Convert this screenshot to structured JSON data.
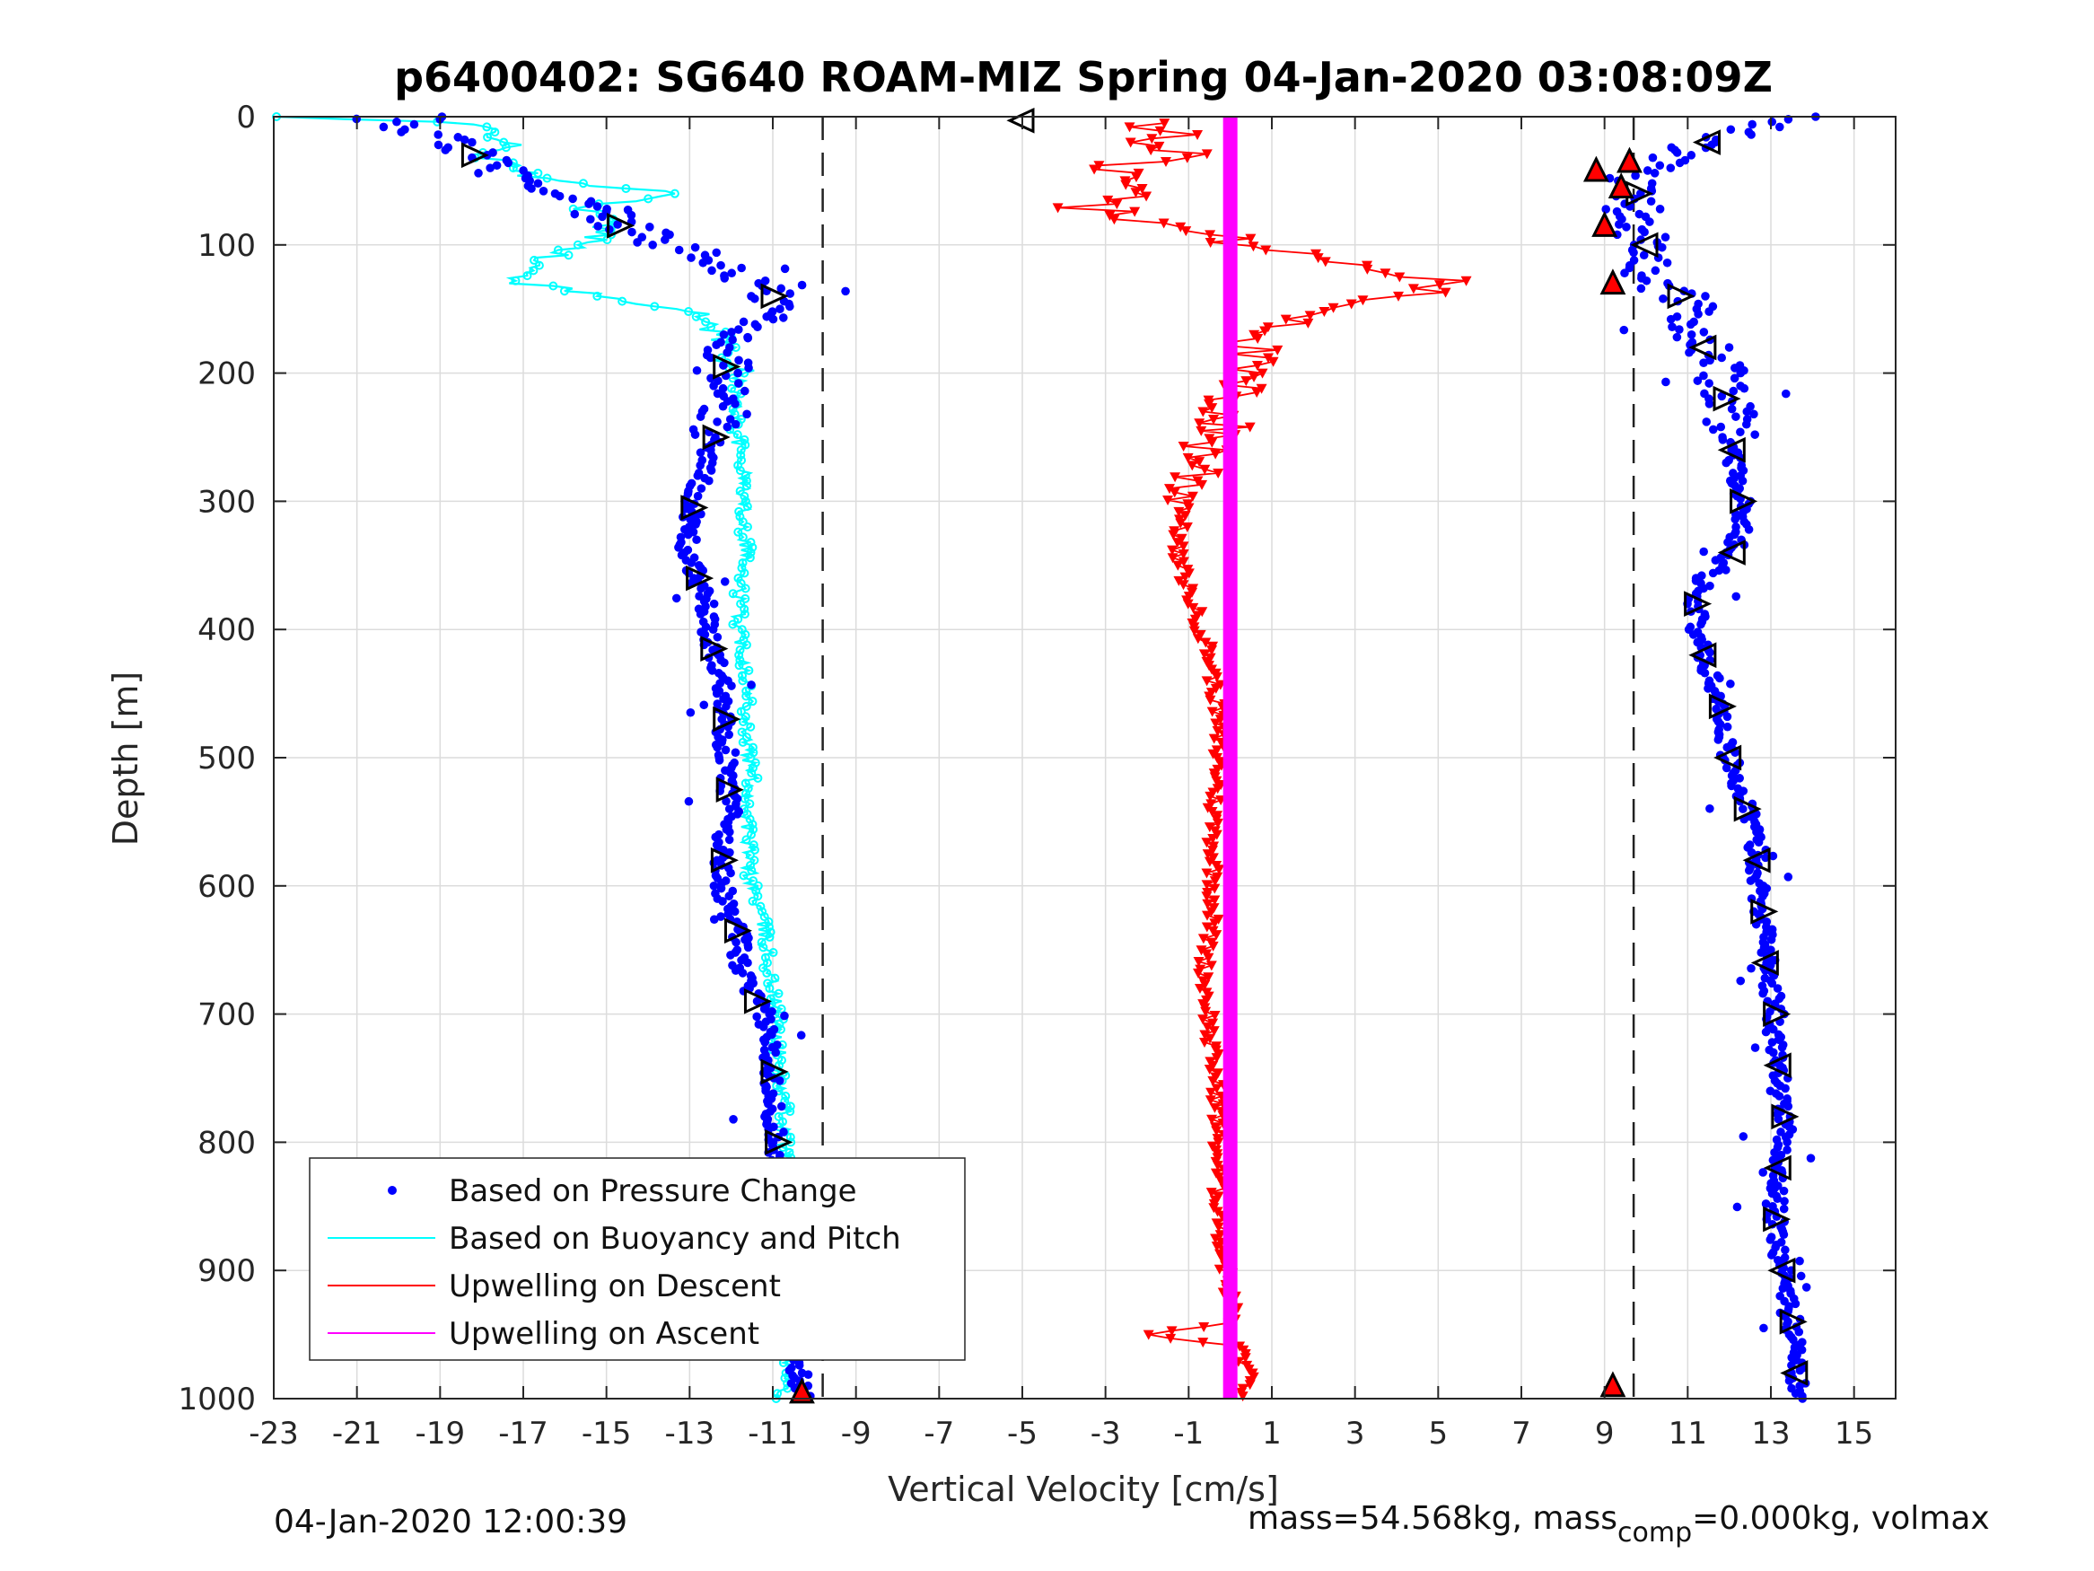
{
  "chart_data": {
    "type": "scatter",
    "title": "p6400402: SG640 ROAM-MIZ Spring 04-Jan-2020 03:08:09Z",
    "xlabel": "Vertical Velocity [cm/s]",
    "ylabel": "Depth [m]",
    "xlim": [
      -23,
      16
    ],
    "ylim": [
      1000,
      0
    ],
    "y_reversed": true,
    "grid": true,
    "x_ticks": [
      "-23",
      "-21",
      "-19",
      "-17",
      "-15",
      "-13",
      "-11",
      "-9",
      "-7",
      "-5",
      "-3",
      "-1",
      "1",
      "3",
      "5",
      "7",
      "9",
      "11",
      "13",
      "15"
    ],
    "y_ticks": [
      "0",
      "100",
      "200",
      "300",
      "400",
      "500",
      "600",
      "700",
      "800",
      "900",
      "1000"
    ],
    "reference_lines": [
      -9.8,
      9.7
    ],
    "legend": {
      "placement": "lower-left",
      "entries": [
        {
          "label": "Based on Pressure Change",
          "color": "#0000ff",
          "marker": "dot"
        },
        {
          "label": "Based on Buoyancy and Pitch",
          "color": "#00ffff",
          "marker": "line"
        },
        {
          "label": "Upwelling on Descent",
          "color": "#ff0000",
          "marker": "line"
        },
        {
          "label": "Upwelling on Ascent",
          "color": "#ff00ff",
          "marker": "line"
        }
      ]
    },
    "series": [
      {
        "name": "Based on Pressure Change",
        "color": "#0000ff",
        "descent": {
          "depth": [
            0,
            10,
            20,
            30,
            40,
            50,
            60,
            70,
            80,
            90,
            100,
            110,
            120,
            130,
            140,
            150,
            160,
            170,
            180,
            190,
            200,
            220,
            240,
            260,
            280,
            300,
            320,
            340,
            360,
            380,
            400,
            420,
            440,
            460,
            480,
            500,
            520,
            540,
            560,
            580,
            600,
            620,
            640,
            660,
            680,
            700,
            720,
            740,
            760,
            780,
            800,
            820,
            840,
            860,
            880,
            900,
            920,
            940,
            960,
            980,
            1000
          ],
          "velocity": [
            -19.5,
            -19.8,
            -18.5,
            -18.2,
            -17.6,
            -17.2,
            -16.5,
            -15.6,
            -15.2,
            -14.2,
            -13.5,
            -12.6,
            -12.0,
            -11.5,
            -11.0,
            -10.9,
            -11.5,
            -11.9,
            -12.0,
            -12.1,
            -12.2,
            -12.2,
            -12.3,
            -12.5,
            -12.7,
            -12.9,
            -13.0,
            -13.1,
            -12.8,
            -12.6,
            -12.6,
            -12.4,
            -12.2,
            -12.1,
            -12.2,
            -12.1,
            -12.1,
            -12.0,
            -12.2,
            -12.2,
            -12.2,
            -12.1,
            -11.8,
            -11.8,
            -11.6,
            -11.2,
            -11.1,
            -11.0,
            -11.0,
            -11.0,
            -10.9,
            -10.9,
            -10.8,
            -10.8,
            -10.7,
            -10.7,
            -10.6,
            -10.5,
            -10.4,
            -10.4,
            -10.3
          ]
        },
        "ascent": {
          "depth": [
            0,
            10,
            20,
            30,
            40,
            50,
            60,
            70,
            80,
            90,
            100,
            110,
            120,
            130,
            140,
            150,
            160,
            170,
            180,
            190,
            200,
            220,
            240,
            260,
            280,
            300,
            320,
            340,
            360,
            380,
            400,
            420,
            440,
            460,
            480,
            500,
            520,
            540,
            560,
            580,
            600,
            620,
            640,
            660,
            680,
            700,
            720,
            740,
            760,
            780,
            800,
            820,
            840,
            860,
            880,
            900,
            920,
            940,
            960,
            980,
            1000
          ],
          "velocity": [
            13.5,
            12.5,
            11.5,
            10.8,
            10.2,
            9.6,
            9.8,
            10.0,
            9.8,
            9.9,
            10.0,
            9.9,
            10.0,
            10.2,
            10.8,
            11.0,
            11.2,
            11.3,
            11.4,
            11.6,
            11.8,
            11.9,
            12.0,
            12.1,
            12.2,
            12.3,
            12.3,
            12.1,
            11.4,
            11.2,
            11.2,
            11.4,
            11.6,
            11.8,
            11.9,
            12.0,
            12.2,
            12.4,
            12.6,
            12.7,
            12.7,
            12.8,
            12.9,
            12.9,
            13.0,
            13.1,
            13.1,
            13.2,
            13.2,
            13.3,
            13.3,
            13.2,
            13.1,
            13.1,
            13.2,
            13.3,
            13.4,
            13.5,
            13.6,
            13.6,
            13.7
          ]
        }
      },
      {
        "name": "Based on Buoyancy and Pitch",
        "color": "#00ffff",
        "depth": [
          0,
          5,
          10,
          20,
          30,
          40,
          50,
          60,
          70,
          80,
          90,
          100,
          110,
          120,
          130,
          140,
          150,
          160,
          170,
          180,
          190,
          200,
          220,
          240,
          260,
          280,
          300,
          320,
          340,
          360,
          380,
          400,
          420,
          440,
          460,
          480,
          500,
          520,
          540,
          560,
          580,
          600,
          620,
          640,
          660,
          680,
          700,
          720,
          740,
          760,
          780,
          800,
          820,
          840,
          860,
          880,
          900,
          920,
          940,
          960,
          980,
          1000
        ],
        "velocity": [
          -23.0,
          -18.5,
          -17.8,
          -17.3,
          -18.0,
          -17.2,
          -16.5,
          -13.0,
          -15.5,
          -15.0,
          -15.2,
          -15.3,
          -16.5,
          -17.0,
          -17.0,
          -15.0,
          -13.2,
          -12.5,
          -12.3,
          -12.1,
          -12.0,
          -11.8,
          -11.9,
          -11.9,
          -11.8,
          -11.7,
          -11.7,
          -11.7,
          -11.6,
          -11.8,
          -11.8,
          -11.8,
          -11.7,
          -11.6,
          -11.6,
          -11.6,
          -11.6,
          -11.5,
          -11.6,
          -11.6,
          -11.6,
          -11.5,
          -11.3,
          -11.2,
          -11.1,
          -11.0,
          -10.9,
          -10.9,
          -10.8,
          -10.8,
          -10.7,
          -10.7,
          -10.7,
          -10.7,
          -10.7,
          -10.6,
          -10.6,
          -10.5,
          -10.5,
          -10.6,
          -10.7,
          -10.8
        ]
      },
      {
        "name": "Upwelling on Descent",
        "color": "#ff0000",
        "depth": [
          5,
          10,
          15,
          20,
          30,
          40,
          50,
          60,
          70,
          80,
          90,
          100,
          110,
          120,
          130,
          140,
          150,
          160,
          170,
          180,
          190,
          200,
          220,
          240,
          260,
          280,
          300,
          320,
          340,
          360,
          380,
          400,
          420,
          440,
          460,
          480,
          500,
          520,
          540,
          560,
          580,
          600,
          620,
          640,
          660,
          680,
          700,
          720,
          740,
          760,
          780,
          800,
          820,
          840,
          860,
          880,
          900,
          920,
          940,
          950,
          960,
          980,
          1000
        ],
        "velocity": [
          -1.5,
          -1.8,
          -0.8,
          -2.5,
          -1.0,
          -3.0,
          -2.0,
          -1.5,
          -3.5,
          -2.0,
          -1.0,
          0.5,
          2.0,
          3.5,
          5.5,
          4.0,
          2.5,
          1.8,
          1.0,
          0.5,
          0.3,
          0.2,
          0.0,
          -0.2,
          -0.5,
          -0.8,
          -1.0,
          -1.2,
          -1.3,
          -1.1,
          -0.9,
          -0.7,
          -0.5,
          -0.4,
          -0.3,
          -0.3,
          -0.3,
          -0.3,
          -0.4,
          -0.4,
          -0.4,
          -0.4,
          -0.4,
          -0.5,
          -0.6,
          -0.6,
          -0.5,
          -0.5,
          -0.4,
          -0.3,
          -0.3,
          -0.3,
          -0.3,
          -0.3,
          -0.2,
          -0.2,
          -0.1,
          0.0,
          0.1,
          -2.0,
          0.3,
          0.4,
          0.4
        ]
      },
      {
        "name": "Upwelling on Ascent",
        "color": "#ff00ff",
        "depth": [
          0,
          1000
        ],
        "velocity": [
          0.0,
          0.0
        ]
      }
    ]
  },
  "footer": {
    "left": "04-Jan-2020 12:00:39",
    "right_prefix": "mass=54.568kg, mass",
    "right_sub": "comp",
    "right_suffix": "=0.000kg, volmax"
  }
}
